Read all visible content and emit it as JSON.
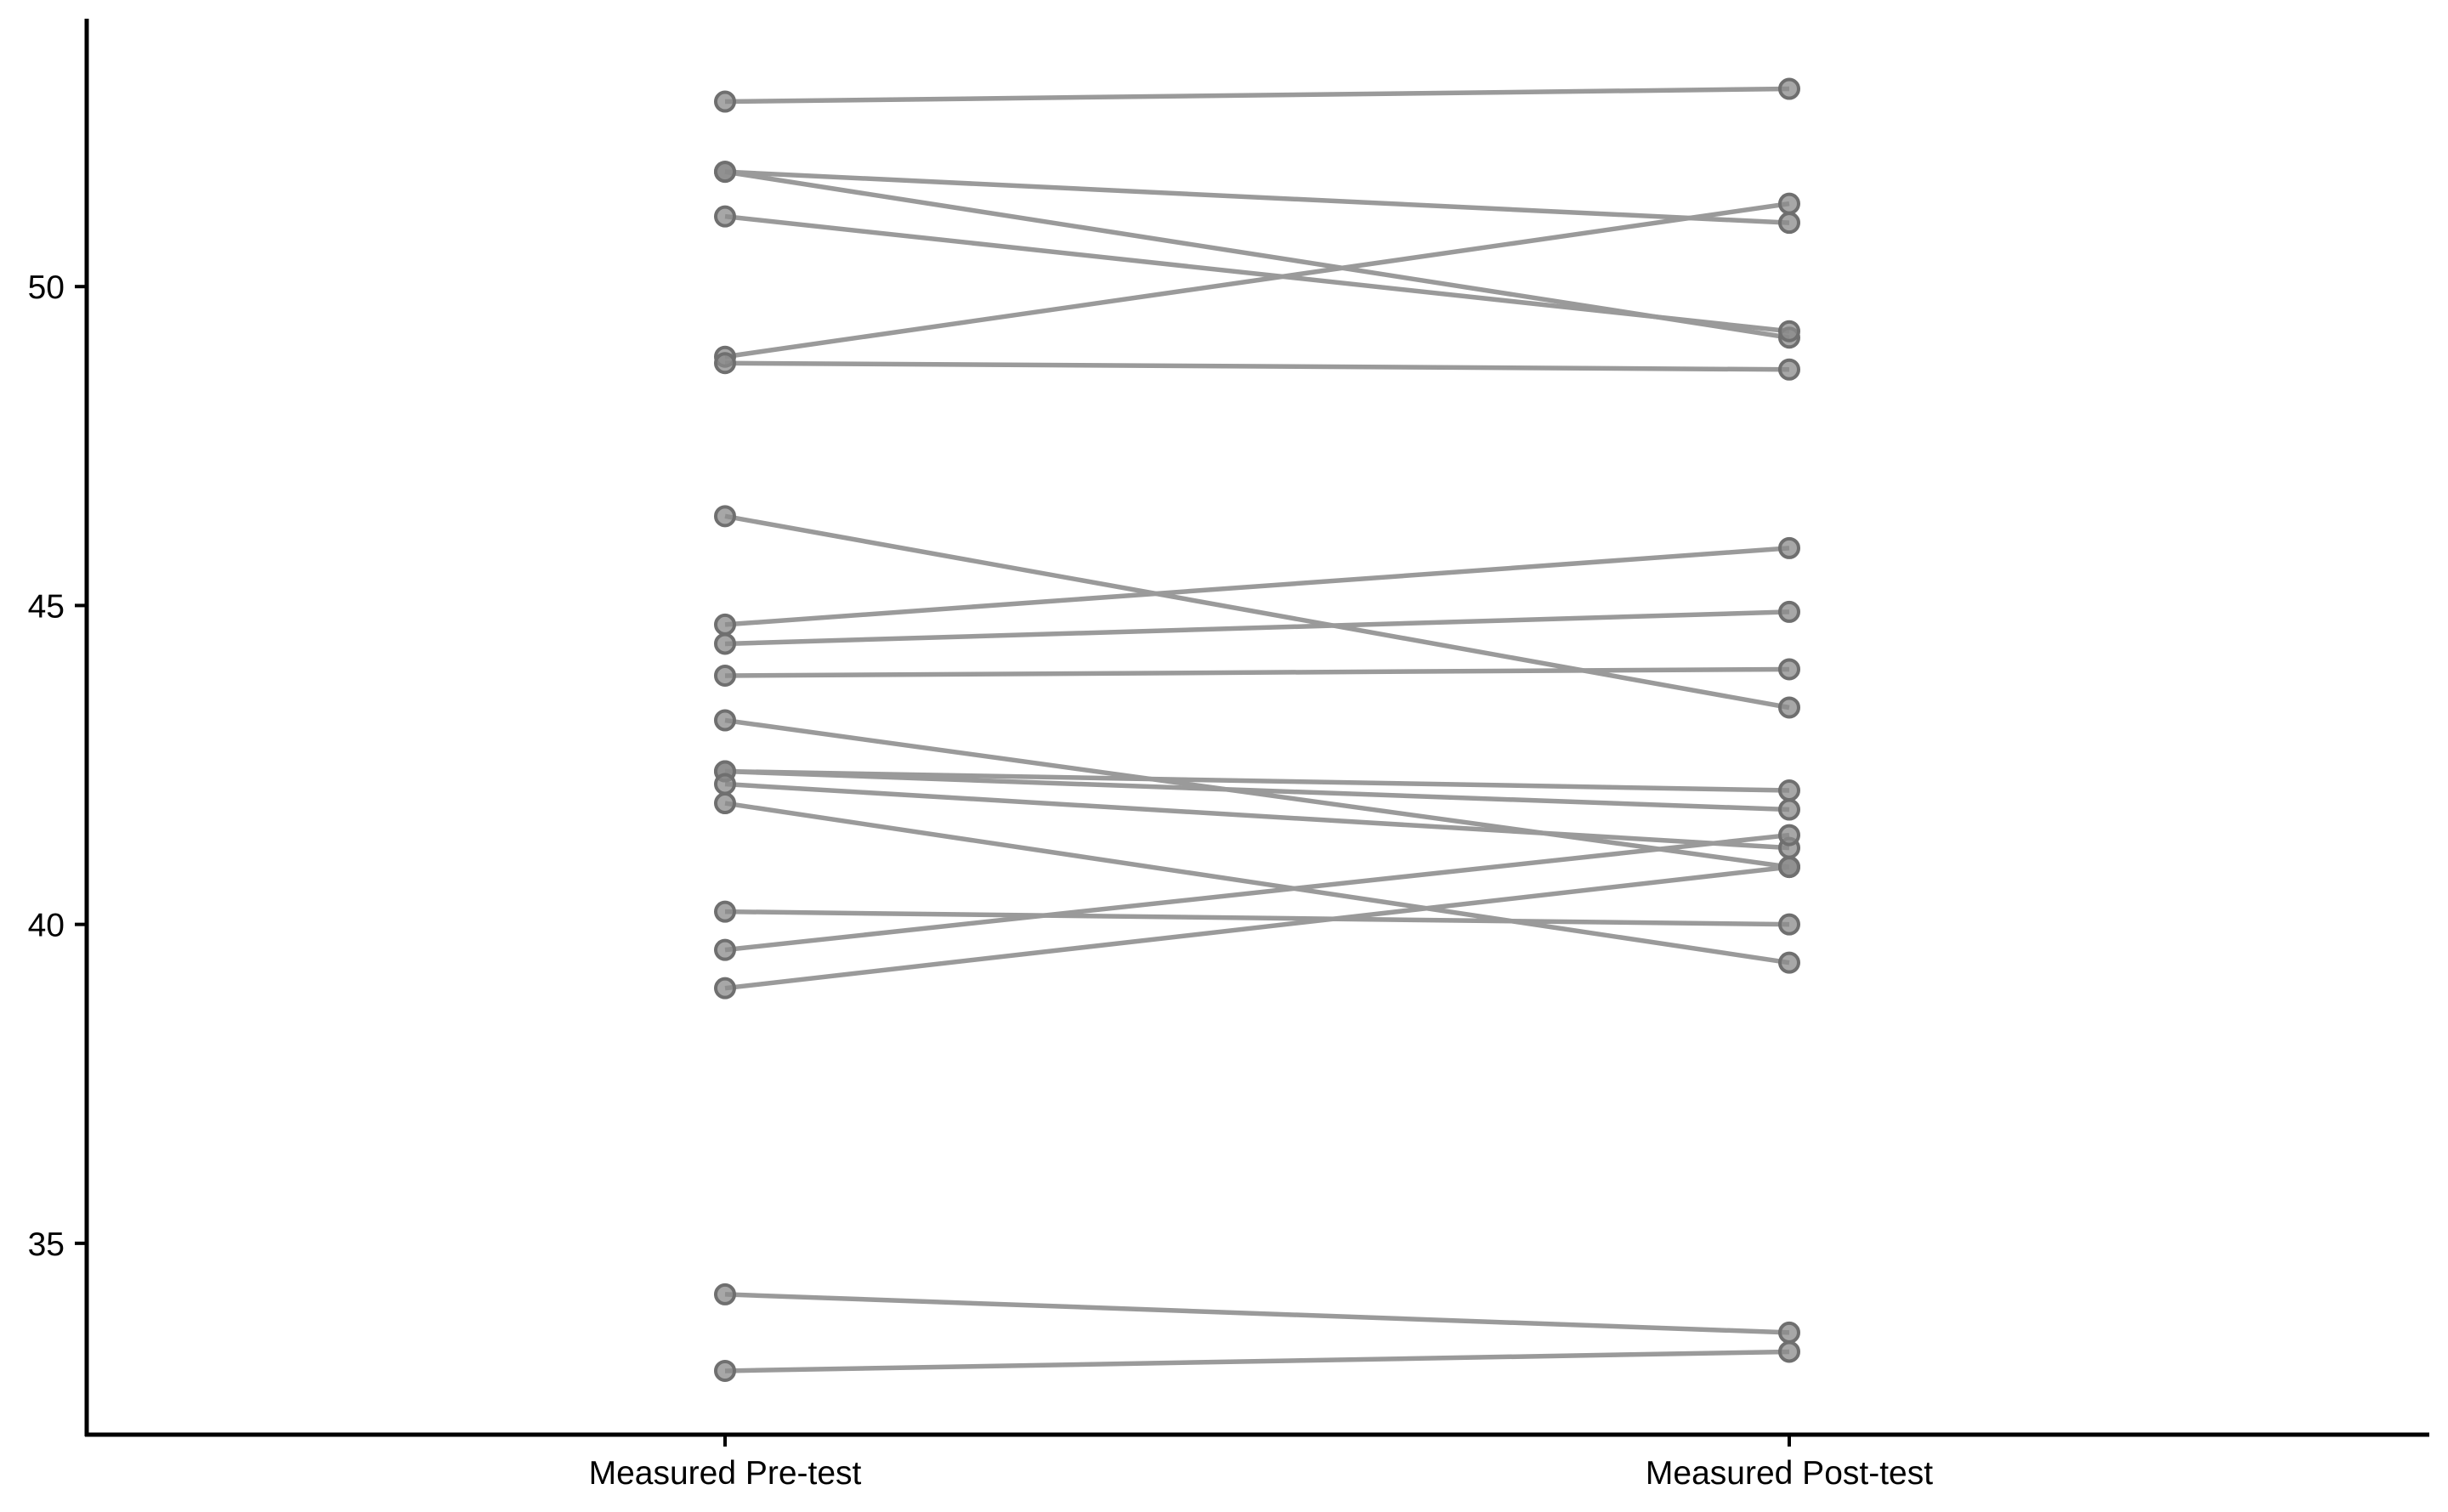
{
  "chart_data": {
    "type": "line",
    "title": "",
    "xlabel": "",
    "ylabel": "",
    "categories": [
      "Measured Pre-test",
      "Measured Post-test"
    ],
    "ylim": [
      32,
      54.2
    ],
    "yticks": [
      35,
      40,
      45,
      50
    ],
    "grid": false,
    "legend": "none",
    "series": [
      {
        "values": [
          52.9,
          53.1
        ]
      },
      {
        "values": [
          51.8,
          51.0
        ]
      },
      {
        "values": [
          51.8,
          49.2
        ]
      },
      {
        "values": [
          51.1,
          49.3
        ]
      },
      {
        "values": [
          48.9,
          51.3
        ]
      },
      {
        "values": [
          48.8,
          48.7
        ]
      },
      {
        "values": [
          46.4,
          43.4
        ]
      },
      {
        "values": [
          44.7,
          45.9
        ]
      },
      {
        "values": [
          44.4,
          44.9
        ]
      },
      {
        "values": [
          43.9,
          44.0
        ]
      },
      {
        "values": [
          43.2,
          40.9
        ]
      },
      {
        "values": [
          42.4,
          42.1
        ]
      },
      {
        "values": [
          42.4,
          41.8
        ]
      },
      {
        "values": [
          42.2,
          41.2
        ]
      },
      {
        "values": [
          41.9,
          39.4
        ]
      },
      {
        "values": [
          40.2,
          40.0
        ]
      },
      {
        "values": [
          39.6,
          41.4
        ]
      },
      {
        "values": [
          39.0,
          40.9
        ]
      },
      {
        "values": [
          34.2,
          33.6
        ]
      },
      {
        "values": [
          33.0,
          33.3
        ]
      }
    ],
    "colors": {
      "line": "#9a9a9a",
      "point_fill": "#8a8a8a",
      "point_stroke": "#6f6f6f",
      "axis": "#000000"
    }
  }
}
